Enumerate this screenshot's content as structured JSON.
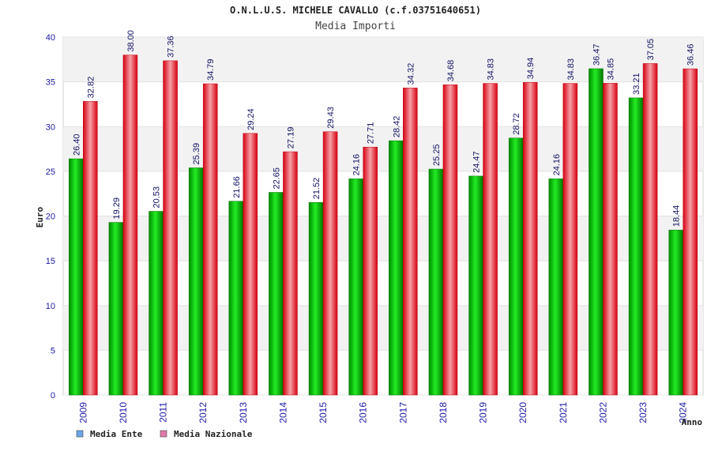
{
  "chart_data": {
    "type": "bar",
    "title": "O.N.L.U.S. MICHELE CAVALLO (c.f.03751640651)",
    "subtitle": "Media Importi",
    "xlabel": "Anno",
    "ylabel": "Euro",
    "ylim": [
      0,
      40
    ],
    "yticks": [
      0,
      5,
      10,
      15,
      20,
      25,
      30,
      35,
      40
    ],
    "grid": true,
    "legend_position": "bottom-left",
    "categories": [
      "2009",
      "2010",
      "2011",
      "2012",
      "2013",
      "2014",
      "2015",
      "2016",
      "2017",
      "2018",
      "2019",
      "2020",
      "2021",
      "2022",
      "2023",
      "2024"
    ],
    "series": [
      {
        "name": "Media Ente",
        "color": "#00c000",
        "legend_color": "#6aa6e8",
        "values": [
          26.4,
          19.29,
          20.53,
          25.39,
          21.66,
          22.65,
          21.52,
          24.16,
          28.42,
          25.25,
          24.47,
          28.72,
          24.16,
          36.47,
          33.21,
          18.44
        ],
        "labels": [
          "26.40",
          "19.29",
          "20.53",
          "25.39",
          "21.66",
          "22.65",
          "21.52",
          "24.16",
          "28.42",
          "25.25",
          "24.47",
          "28.72",
          "24.16",
          "36.47",
          "33.21",
          "18.44"
        ]
      },
      {
        "name": "Media Nazionale",
        "color": "#e8202a",
        "legend_color": "#e07aa8",
        "values": [
          32.82,
          38.0,
          37.36,
          34.79,
          29.24,
          27.19,
          29.43,
          27.71,
          34.32,
          34.68,
          34.83,
          34.94,
          34.83,
          34.85,
          37.05,
          36.46
        ],
        "labels": [
          "32.82",
          "38.00",
          "37.36",
          "34.79",
          "29.24",
          "27.19",
          "29.43",
          "27.71",
          "34.32",
          "34.68",
          "34.83",
          "34.94",
          "34.83",
          "34.85",
          "37.05",
          "36.46"
        ]
      }
    ]
  }
}
